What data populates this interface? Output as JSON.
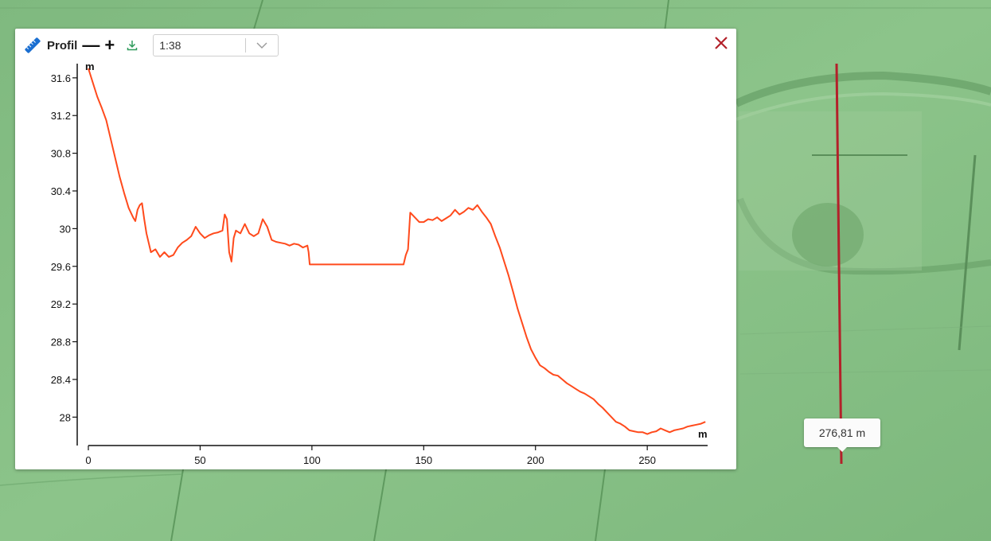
{
  "map": {
    "background_color": "#86bf86",
    "profile_line_color": "#b3212a"
  },
  "panel": {
    "title": "Profil",
    "zoom_out_label": "—",
    "zoom_in_label": "+",
    "scale_value": "1:38",
    "icons": [
      "ruler-icon",
      "download-icon",
      "chevron-down-icon",
      "close-icon"
    ]
  },
  "tooltip": {
    "distance": "276,81 m"
  },
  "chart_data": {
    "type": "line",
    "xlabel": "m",
    "ylabel": "m",
    "xlim": [
      0,
      277
    ],
    "ylim": [
      27.8,
      31.7
    ],
    "x_ticks": [
      0,
      50,
      100,
      150,
      200,
      250
    ],
    "y_ticks": [
      28,
      28.4,
      28.8,
      29.2,
      29.6,
      30,
      30.4,
      30.8,
      31.2,
      31.6
    ],
    "y_tick_labels": [
      "28",
      "28.4",
      "28.8",
      "29.2",
      "29.6",
      "30",
      "30.4",
      "30.8",
      "31.2",
      "31.6"
    ],
    "line_color": "#ff4a1c",
    "series": [
      {
        "x": [
          0,
          2,
          4,
          6,
          8,
          10,
          12,
          14,
          16,
          18,
          20,
          21,
          22,
          23,
          24,
          25,
          26,
          27,
          28,
          30,
          32,
          34,
          36,
          38,
          40,
          42,
          44,
          46,
          48,
          50,
          52,
          54,
          56,
          58,
          60,
          61,
          62,
          63,
          64,
          65,
          66,
          68,
          70,
          72,
          74,
          76,
          78,
          80,
          82,
          84,
          86,
          88,
          90,
          92,
          94,
          96,
          98,
          98.5,
          99,
          141,
          142,
          143,
          144,
          146,
          148,
          150,
          152,
          154,
          156,
          158,
          160,
          162,
          164,
          166,
          168,
          170,
          172,
          174,
          176,
          178,
          180,
          182,
          184,
          186,
          188,
          190,
          192,
          194,
          196,
          198,
          200,
          202,
          204,
          206,
          208,
          210,
          212,
          214,
          216,
          218,
          220,
          222,
          224,
          226,
          228,
          230,
          232,
          234,
          236,
          238,
          240,
          242,
          244,
          246,
          248,
          250,
          252,
          254,
          256,
          258,
          260,
          262,
          264,
          266,
          268,
          270,
          272,
          274,
          276
        ],
        "y": [
          31.7,
          31.55,
          31.4,
          31.28,
          31.15,
          30.95,
          30.75,
          30.55,
          30.38,
          30.22,
          30.12,
          30.08,
          30.2,
          30.25,
          30.27,
          30.1,
          29.95,
          29.85,
          29.75,
          29.78,
          29.7,
          29.75,
          29.7,
          29.72,
          29.8,
          29.85,
          29.88,
          29.92,
          30.02,
          29.95,
          29.9,
          29.93,
          29.95,
          29.96,
          29.98,
          30.15,
          30.1,
          29.75,
          29.65,
          29.9,
          29.98,
          29.95,
          30.05,
          29.95,
          29.92,
          29.95,
          30.1,
          30.02,
          29.88,
          29.86,
          29.85,
          29.84,
          29.82,
          29.84,
          29.83,
          29.8,
          29.82,
          29.75,
          29.62,
          29.62,
          29.72,
          29.78,
          30.17,
          30.12,
          30.07,
          30.07,
          30.1,
          30.09,
          30.12,
          30.08,
          30.11,
          30.14,
          30.2,
          30.15,
          30.18,
          30.22,
          30.2,
          30.25,
          30.18,
          30.12,
          30.05,
          29.92,
          29.8,
          29.65,
          29.5,
          29.33,
          29.15,
          29.0,
          28.85,
          28.72,
          28.63,
          28.55,
          28.52,
          28.48,
          28.45,
          28.44,
          28.4,
          28.36,
          28.33,
          28.3,
          28.27,
          28.25,
          28.22,
          28.19,
          28.14,
          28.1,
          28.05,
          28.0,
          27.95,
          27.93,
          27.9,
          27.86,
          27.85,
          27.84,
          27.84,
          27.82,
          27.84,
          27.85,
          27.88,
          27.86,
          27.84,
          27.86,
          27.87,
          27.88,
          27.9,
          27.91,
          27.92,
          27.93,
          27.95
        ]
      }
    ]
  }
}
